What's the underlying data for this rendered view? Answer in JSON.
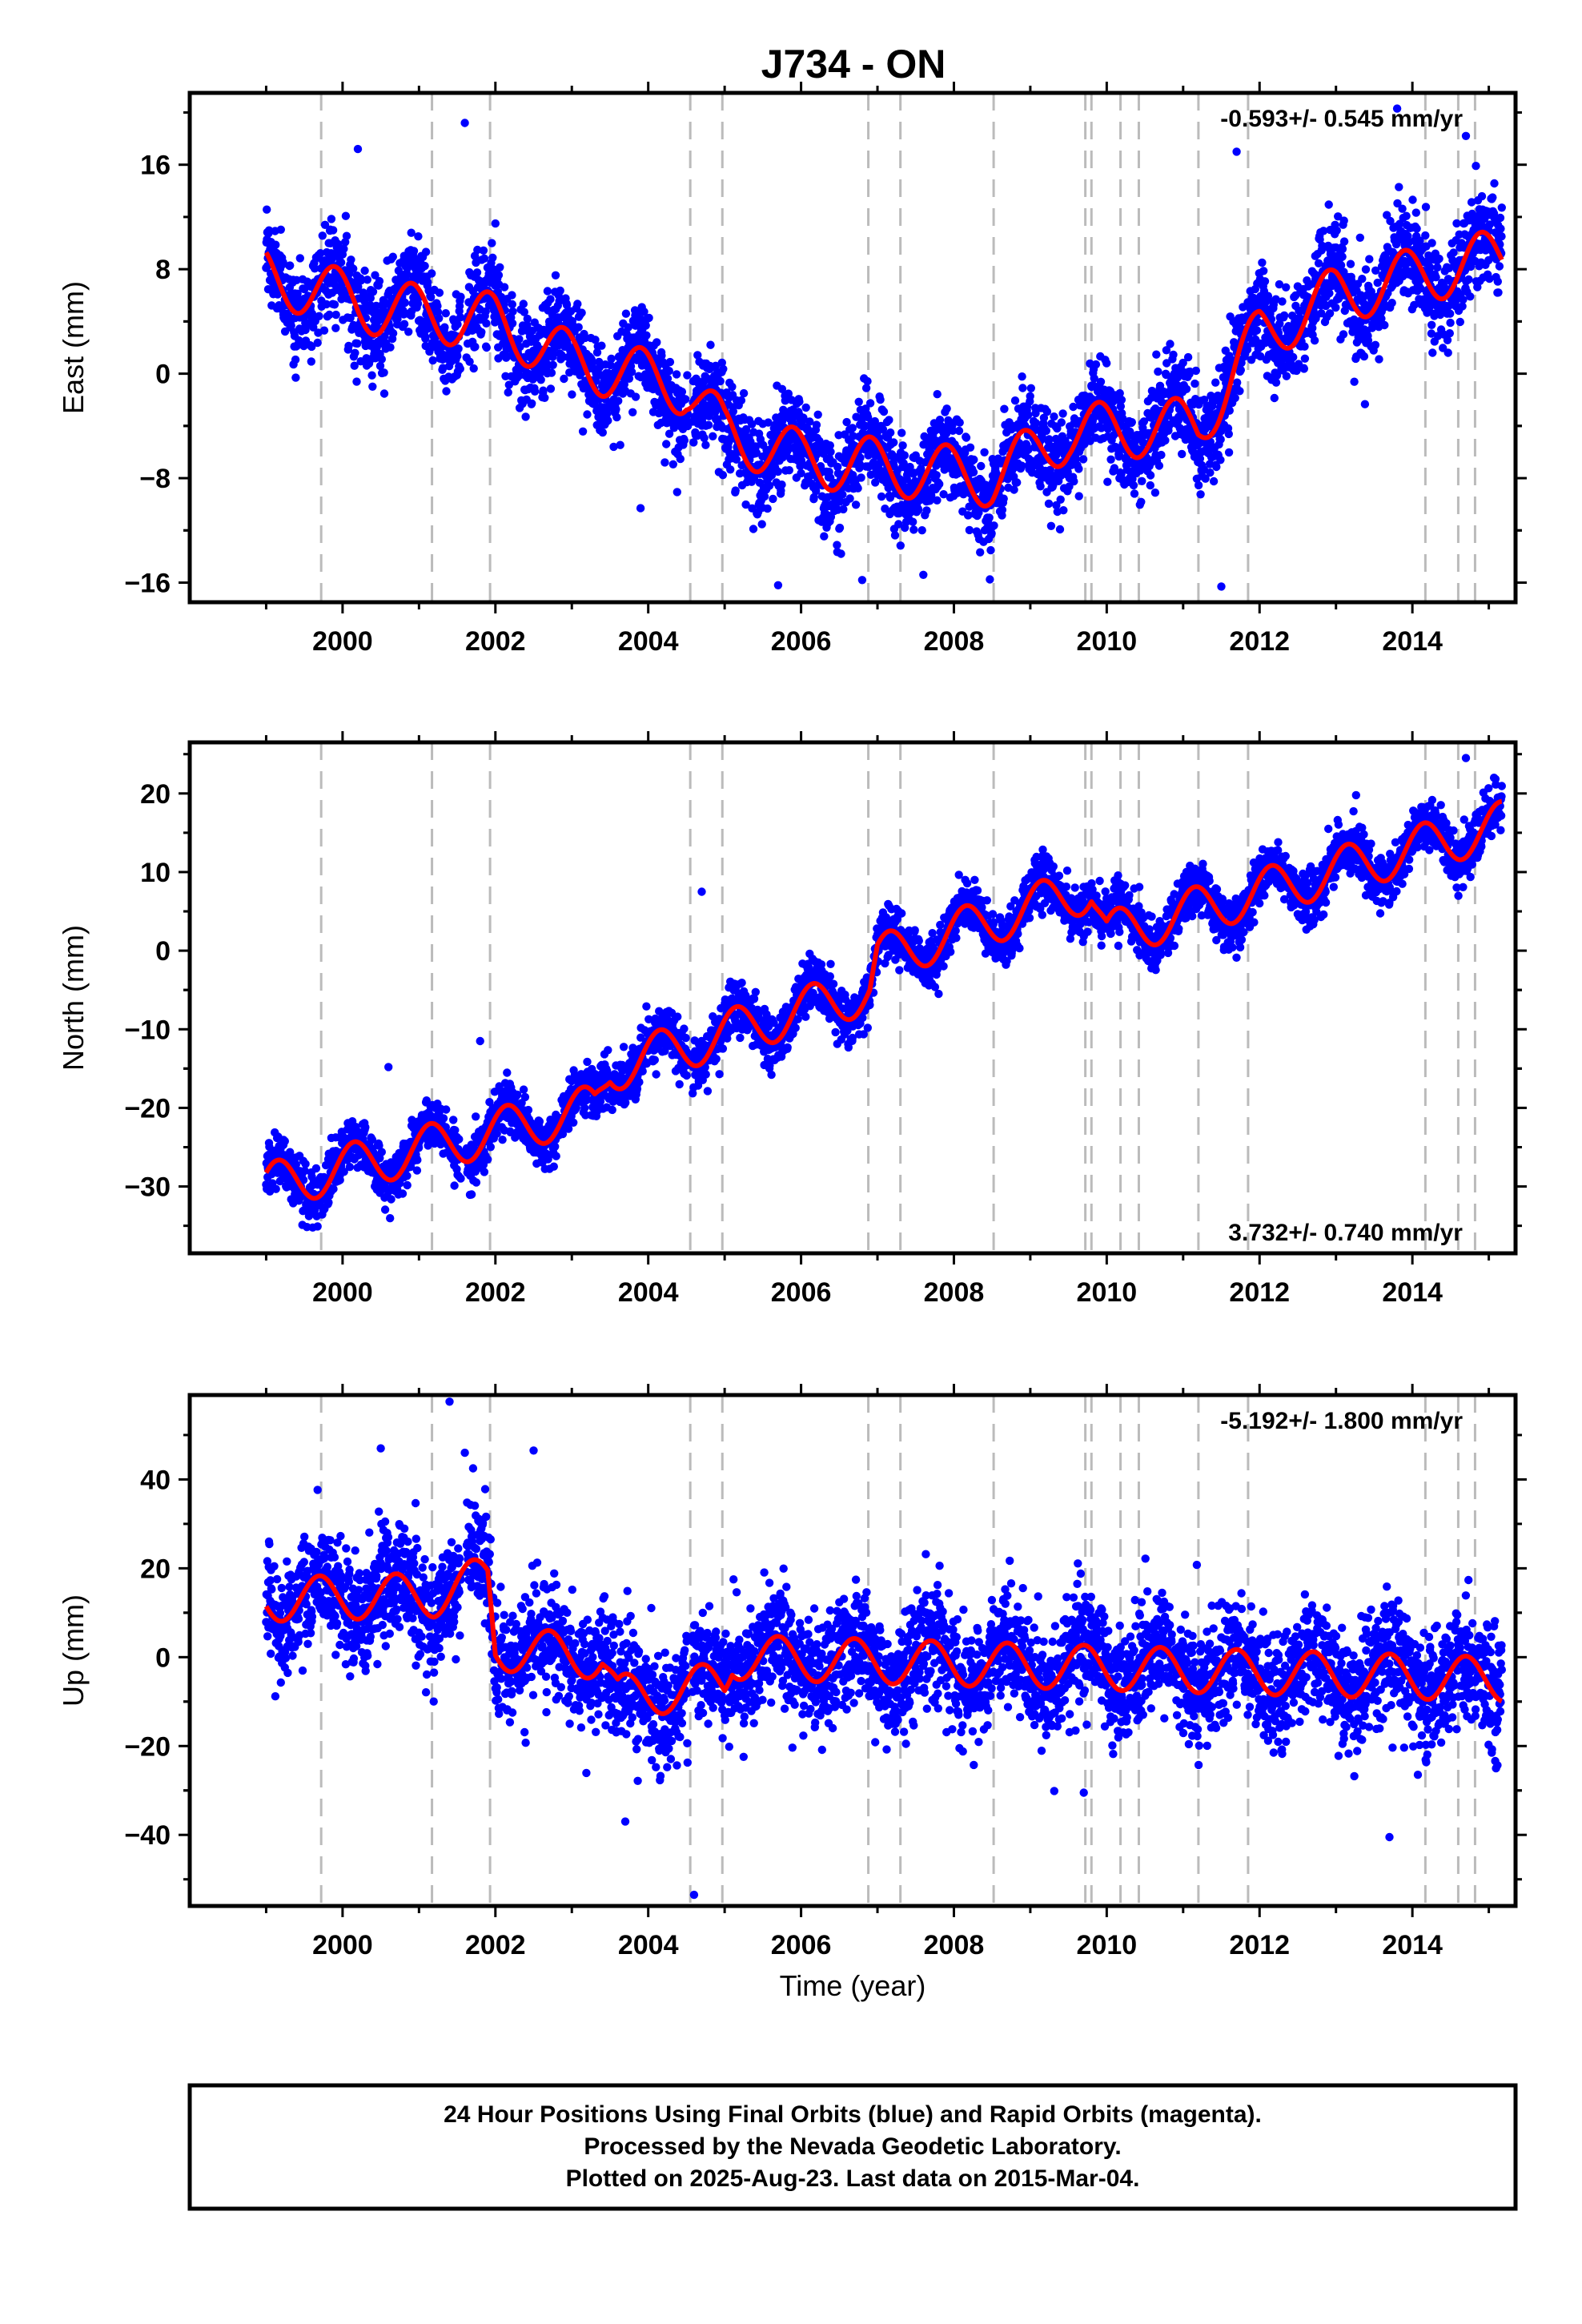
{
  "title": "J734 - ON",
  "colors": {
    "final_orbits": "#0000ff",
    "model": "#ff0000",
    "step_lines": "#bbbbbb",
    "frame": "#000000"
  },
  "footer": {
    "line1": "24 Hour Positions Using Final Orbits (blue) and Rapid Orbits (magenta).",
    "line2": "Processed by the Nevada Geodetic Laboratory.",
    "line3": "Plotted on 2025-Aug-23. Last data on 2015-Mar-04."
  },
  "chart_data": [
    {
      "type": "scatter",
      "id": "east",
      "title": "",
      "xlabel": "",
      "ylabel": "East (mm)",
      "xlim": [
        1998.0,
        2015.35
      ],
      "ylim": [
        -17.5,
        21.5
      ],
      "x_ticks": [
        2000,
        2002,
        2004,
        2006,
        2008,
        2010,
        2012,
        2014
      ],
      "y_ticks": [
        -16,
        -8,
        0,
        8,
        16
      ],
      "y_tick_labels": [
        "−16",
        "−8",
        "0",
        "8",
        "16"
      ],
      "rate_label": "-0.593+/- 0.545 mm/yr",
      "rate_position": "top-right",
      "data_start": 1999.0,
      "data_end": 2015.17,
      "steps": [
        1999.72,
        2001.17,
        2001.93,
        2004.55,
        2004.97,
        2006.88,
        2007.3,
        2008.52,
        2009.72,
        2009.8,
        2010.18,
        2010.42,
        2011.2,
        2011.85,
        2014.17,
        2014.6,
        2014.82
      ],
      "trend_points": [
        [
          1999.0,
          7.5
        ],
        [
          2000.5,
          5.0
        ],
        [
          2002.0,
          4.0
        ],
        [
          2003.0,
          1.0
        ],
        [
          2004.5,
          -1.0
        ],
        [
          2005.0,
          -4.5
        ],
        [
          2006.0,
          -6.5
        ],
        [
          2008.5,
          -8.0
        ],
        [
          2009.5,
          -4.5
        ],
        [
          2011.2,
          -4.0
        ],
        [
          2012.0,
          3.0
        ],
        [
          2013.0,
          6.0
        ],
        [
          2015.17,
          9.0
        ]
      ],
      "seasonal_amplitude": 2.2,
      "seasonal_phase": 0.35,
      "scatter_sd": 1.8,
      "outliers": [
        [
          2000.2,
          17.2
        ],
        [
          2001.6,
          19.2
        ],
        [
          2002.0,
          11.5
        ],
        [
          2011.7,
          17.0
        ],
        [
          2013.8,
          20.3
        ],
        [
          2014.7,
          18.2
        ],
        [
          2006.8,
          -15.8
        ],
        [
          2007.6,
          -15.4
        ],
        [
          2011.5,
          -16.3
        ],
        [
          2005.7,
          -16.2
        ],
        [
          2003.9,
          -10.3
        ]
      ]
    },
    {
      "type": "scatter",
      "id": "north",
      "title": "",
      "xlabel": "",
      "ylabel": "North (mm)",
      "xlim": [
        1998.0,
        2015.35
      ],
      "ylim": [
        -38.5,
        26.5
      ],
      "x_ticks": [
        2000,
        2002,
        2004,
        2006,
        2008,
        2010,
        2012,
        2014
      ],
      "y_ticks": [
        -30,
        -20,
        -10,
        0,
        10,
        20
      ],
      "y_tick_labels": [
        "−30",
        "−20",
        "−10",
        "0",
        "10",
        "20"
      ],
      "rate_label": "3.732+/- 0.740 mm/yr",
      "rate_position": "bottom-right",
      "data_start": 1999.0,
      "data_end": 2015.17,
      "steps": [
        1999.72,
        2001.17,
        2001.93,
        2004.55,
        2004.97,
        2006.88,
        2007.3,
        2008.52,
        2009.72,
        2009.8,
        2010.18,
        2010.42,
        2011.2,
        2011.85,
        2014.17,
        2014.6,
        2014.82
      ],
      "trend_points": [
        [
          1999.0,
          -30.0
        ],
        [
          2003.3,
          -20.0
        ],
        [
          2003.5,
          -15.0
        ],
        [
          2006.9,
          -5.0
        ],
        [
          2007.0,
          -1.0
        ],
        [
          2009.8,
          8.0
        ],
        [
          2010.0,
          2.0
        ],
        [
          2015.17,
          16.0
        ]
      ],
      "seasonal_amplitude": 3.0,
      "seasonal_phase": 0.1,
      "scatter_sd": 1.6,
      "outliers": [
        [
          2004.7,
          7.5
        ],
        [
          2001.8,
          -11.5
        ],
        [
          2000.6,
          -14.8
        ],
        [
          2014.7,
          24.5
        ],
        [
          2007.8,
          -5.5
        ],
        [
          2012.9,
          15.5
        ]
      ]
    },
    {
      "type": "scatter",
      "id": "up",
      "title": "",
      "xlabel": "Time (year)",
      "ylabel": "Up (mm)",
      "xlim": [
        1998.0,
        2015.35
      ],
      "ylim": [
        -56,
        59
      ],
      "x_ticks": [
        2000,
        2002,
        2004,
        2006,
        2008,
        2010,
        2012,
        2014
      ],
      "y_ticks": [
        -40,
        -20,
        0,
        20,
        40
      ],
      "y_tick_labels": [
        "−40",
        "−20",
        "0",
        "20",
        "40"
      ],
      "rate_label": "-5.192+/- 1.800 mm/yr",
      "rate_position": "top-right",
      "data_start": 1999.0,
      "data_end": 2015.17,
      "steps": [
        1999.72,
        2001.17,
        2001.93,
        2004.55,
        2004.97,
        2006.88,
        2007.3,
        2008.52,
        2009.72,
        2009.8,
        2010.18,
        2010.42,
        2011.2,
        2011.85,
        2014.17,
        2014.6,
        2014.82
      ],
      "trend_points": [
        [
          1999.0,
          13.0
        ],
        [
          2001.2,
          14.0
        ],
        [
          2001.9,
          18.0
        ],
        [
          2002.0,
          2.0
        ],
        [
          2003.4,
          0.0
        ],
        [
          2003.6,
          -9.0
        ],
        [
          2005.0,
          -6.0
        ],
        [
          2005.1,
          0.0
        ],
        [
          2015.17,
          -5.0
        ]
      ],
      "seasonal_amplitude": 5.0,
      "seasonal_phase": 0.55,
      "scatter_sd": 6.5,
      "outliers": [
        [
          2001.4,
          57.5
        ],
        [
          2004.6,
          -53.5
        ],
        [
          2013.7,
          -40.5
        ],
        [
          2009.7,
          -30.5
        ],
        [
          2000.5,
          47.0
        ],
        [
          2002.5,
          46.5
        ],
        [
          2001.6,
          46.0
        ],
        [
          2003.7,
          -37.0
        ]
      ]
    }
  ]
}
